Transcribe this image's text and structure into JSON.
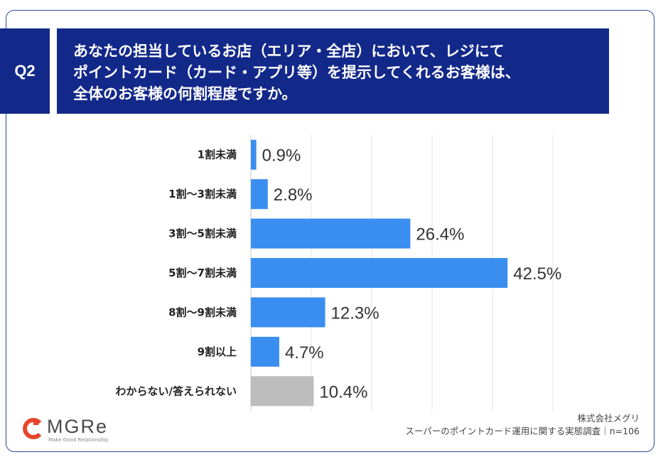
{
  "question": {
    "number": "Q2",
    "lines": [
      "あなたの担当しているお店（エリア・全店）において、レジにて",
      "ポイントカード（カード・アプリ等）を提示してくれるお客様は、",
      "全体のお客様の何割程度ですか。"
    ]
  },
  "chart_data": {
    "type": "bar",
    "orientation": "horizontal",
    "categories": [
      "1割未満",
      "1割〜3割未満",
      "3割〜5割未満",
      "5割〜7割未満",
      "8割〜9割未満",
      "9割以上",
      "わからない/答えられない"
    ],
    "values": [
      0.9,
      2.8,
      26.4,
      42.5,
      12.3,
      4.7,
      10.4
    ],
    "value_labels": [
      "0.9%",
      "2.8%",
      "26.4%",
      "42.5%",
      "12.3%",
      "4.7%",
      "10.4%"
    ],
    "xlim": [
      0,
      50
    ],
    "grid": true,
    "colors": [
      "#3a8ef0",
      "#3a8ef0",
      "#3a8ef0",
      "#3a8ef0",
      "#3a8ef0",
      "#3a8ef0",
      "#bdbdbd"
    ]
  },
  "footer": {
    "company": "株式会社メグリ",
    "source": "スーパーのポイントカード運用に関する実態調査｜n=106"
  },
  "logo": {
    "text": "MGRe",
    "subtitle": "Make Good Relationship",
    "color": "#e8452c"
  }
}
